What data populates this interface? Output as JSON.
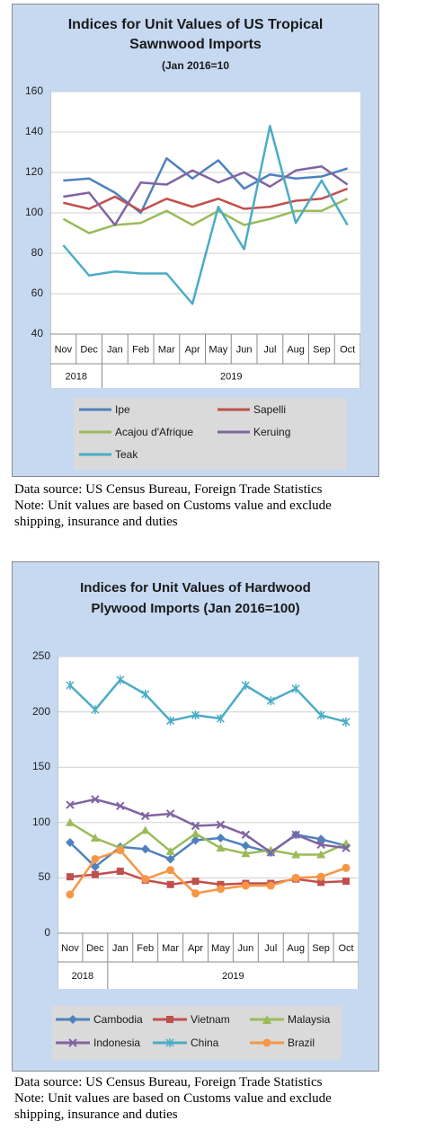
{
  "chart_data": [
    {
      "type": "line",
      "title_line1": "Indices for Unit Values of US Tropical",
      "title_line2": "Sawnwood Imports",
      "subtitle": "(Jan 2016=10",
      "categories": [
        "Nov",
        "Dec",
        "Jan",
        "Feb",
        "Mar",
        "Apr",
        "May",
        "Jun",
        "Jul",
        "Aug",
        "Sep",
        "Oct"
      ],
      "year_labels": [
        "2018",
        "2019"
      ],
      "ylim": [
        40,
        160
      ],
      "yticks": [
        40,
        60,
        80,
        100,
        120,
        140,
        160
      ],
      "grid": "horizontal",
      "legend_position": "bottom",
      "series": [
        {
          "name": "Ipe",
          "color": "#4f81bd",
          "marker": "none",
          "values": [
            116,
            117,
            110,
            100,
            127,
            117,
            126,
            112,
            119,
            117,
            118,
            122
          ]
        },
        {
          "name": "Sapelli",
          "color": "#c0504d",
          "marker": "none",
          "values": [
            105,
            102,
            108,
            101,
            107,
            103,
            107,
            102,
            103,
            106,
            107,
            112
          ]
        },
        {
          "name": "Acajou d'Afrique",
          "color": "#9bbb59",
          "marker": "none",
          "values": [
            97,
            90,
            94,
            95,
            101,
            94,
            101,
            94,
            97,
            101,
            101,
            107
          ]
        },
        {
          "name": "Keruing",
          "color": "#8064a2",
          "marker": "none",
          "values": [
            108,
            110,
            94,
            115,
            114,
            121,
            115,
            120,
            113,
            121,
            123,
            114
          ]
        },
        {
          "name": "Teak",
          "color": "#4bacc6",
          "marker": "none",
          "values": [
            84,
            69,
            71,
            70,
            70,
            55,
            103,
            82,
            143,
            95,
            116,
            94
          ]
        }
      ]
    },
    {
      "type": "line",
      "title_line1": "Indices for Unit Values of Hardwood",
      "title_line2": "Plywood Imports (Jan 2016=100)",
      "categories": [
        "Nov",
        "Dec",
        "Jan",
        "Feb",
        "Mar",
        "Apr",
        "May",
        "Jun",
        "Jul",
        "Aug",
        "Sep",
        "Oct"
      ],
      "year_labels": [
        "2018",
        "2019"
      ],
      "ylim": [
        0,
        250
      ],
      "yticks": [
        0,
        50,
        100,
        150,
        200,
        250
      ],
      "grid": "horizontal",
      "legend_position": "bottom",
      "series": [
        {
          "name": "Cambodia",
          "color": "#4f81bd",
          "marker": "diamond",
          "values": [
            82,
            60,
            78,
            76,
            67,
            84,
            86,
            79,
            73,
            89,
            85,
            79
          ]
        },
        {
          "name": "Vietnam",
          "color": "#c0504d",
          "marker": "square",
          "values": [
            51,
            53,
            56,
            48,
            44,
            47,
            44,
            45,
            45,
            49,
            46,
            47
          ]
        },
        {
          "name": "Malaysia",
          "color": "#9bbb59",
          "marker": "triangle",
          "values": [
            100,
            86,
            77,
            93,
            74,
            90,
            77,
            72,
            75,
            71,
            71,
            81
          ]
        },
        {
          "name": "Indonesia",
          "color": "#8064a2",
          "marker": "x",
          "values": [
            116,
            121,
            115,
            106,
            108,
            97,
            98,
            89,
            73,
            89,
            80,
            77
          ]
        },
        {
          "name": "China",
          "color": "#4bacc6",
          "marker": "star",
          "values": [
            224,
            202,
            229,
            216,
            192,
            197,
            194,
            224,
            210,
            221,
            197,
            191
          ]
        },
        {
          "name": "Brazil",
          "color": "#f79646",
          "marker": "circle",
          "values": [
            35,
            67,
            75,
            49,
            57,
            36,
            40,
            43,
            43,
            50,
            51,
            59
          ]
        }
      ]
    }
  ],
  "notes": [
    {
      "line1": "Data source: US Census Bureau, Foreign Trade Statistics",
      "line2": "Note: Unit values are based on Customs value and exclude",
      "line3": "shipping, insurance and duties"
    },
    {
      "line1": "Data source: US Census Bureau, Foreign Trade Statistics",
      "line2": "Note: Unit values are based on Customs value and exclude",
      "line3": "shipping, insurance and duties"
    }
  ]
}
